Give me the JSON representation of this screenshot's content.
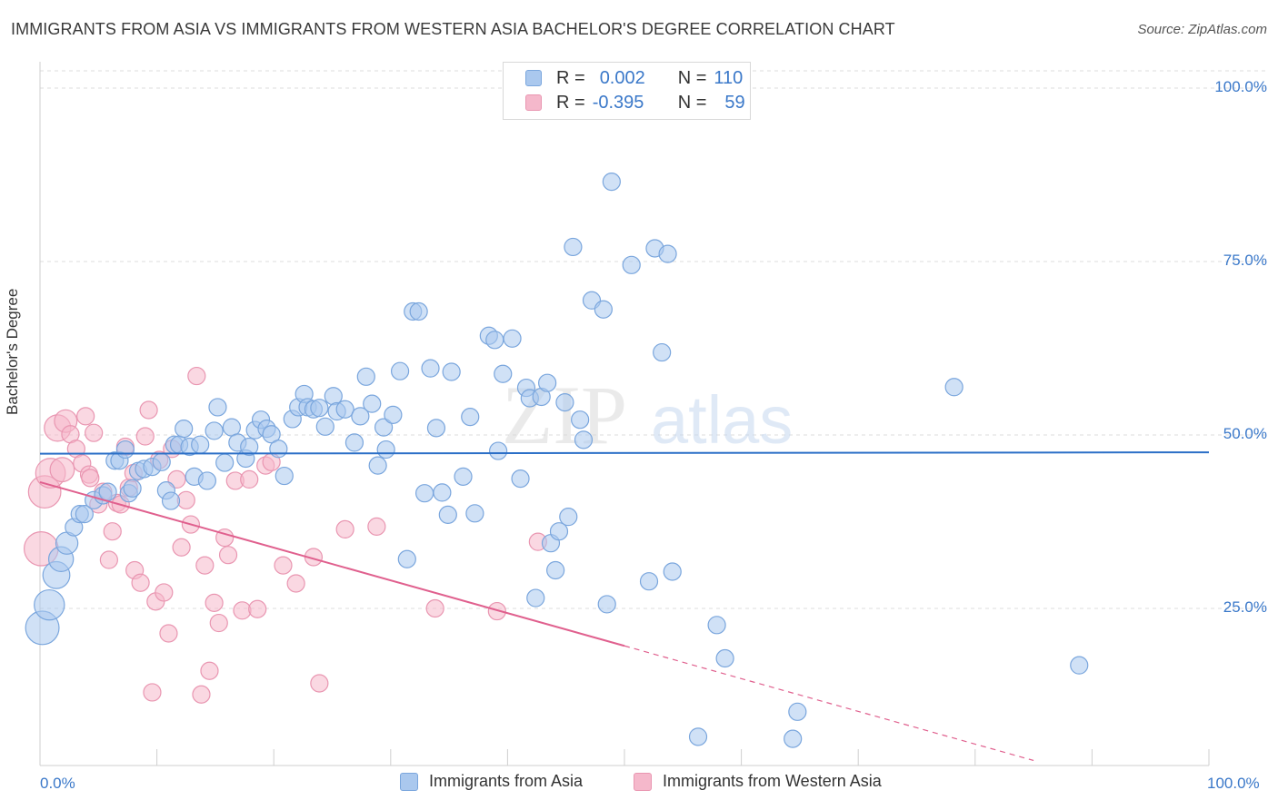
{
  "title": "IMMIGRANTS FROM ASIA VS IMMIGRANTS FROM WESTERN ASIA BACHELOR'S DEGREE CORRELATION CHART",
  "source": "Source: ZipAtlas.com",
  "watermark": {
    "zip": "ZIP",
    "atlas": "atlas"
  },
  "legend": {
    "rows": [
      {
        "r_label": "R =",
        "r_value": "0.002",
        "n_label": "N =",
        "n_value": "110"
      },
      {
        "r_label": "R =",
        "r_value": "-0.395",
        "n_label": "N =",
        "n_value": "59"
      }
    ]
  },
  "bottom_legend": [
    "Immigrants from Asia",
    "Immigrants from Western Asia"
  ],
  "colors": {
    "blue_fill": "#aac8ee",
    "blue_stroke": "#7aa6dd",
    "blue_line": "#2b6fc7",
    "pink_fill": "#f5b8cb",
    "pink_stroke": "#e996b1",
    "pink_line": "#e0608e",
    "accent_text": "#3a78c9",
    "grid": "#dcdcdc"
  },
  "chart_data": {
    "type": "scatter",
    "title": "IMMIGRANTS FROM ASIA VS IMMIGRANTS FROM WESTERN ASIA BACHELOR'S DEGREE CORRELATION CHART",
    "xlabel": "",
    "ylabel": "Bachelor's Degree",
    "xlim": [
      0,
      100
    ],
    "ylim": [
      0,
      105
    ],
    "x_tick_labels": [
      "0.0%",
      "100.0%"
    ],
    "y_ticks": [
      25,
      50,
      75,
      100
    ],
    "y_tick_labels": [
      "25.0%",
      "50.0%",
      "75.0%",
      "100.0%"
    ],
    "grid": true,
    "series": [
      {
        "name": "Immigrants from Asia",
        "color": "#aac8ee",
        "trend": {
          "x0": 0,
          "y0": 47.3,
          "x1": 100,
          "y1": 47.5,
          "dashed_from_x": null
        },
        "points": [
          [
            0.2,
            22.2
          ],
          [
            0.8,
            25.5
          ],
          [
            1.4,
            29.8
          ],
          [
            1.8,
            32.1
          ],
          [
            2.3,
            34.4
          ],
          [
            2.9,
            36.7
          ],
          [
            3.4,
            38.6
          ],
          [
            3.8,
            38.6
          ],
          [
            4.6,
            40.6
          ],
          [
            5.4,
            41.3
          ],
          [
            5.8,
            41.8
          ],
          [
            6.4,
            46.3
          ],
          [
            6.8,
            46.3
          ],
          [
            7.3,
            47.9
          ],
          [
            7.6,
            41.6
          ],
          [
            7.9,
            42.3
          ],
          [
            8.4,
            44.8
          ],
          [
            8.9,
            45.1
          ],
          [
            9.6,
            45.4
          ],
          [
            10.4,
            46.1
          ],
          [
            10.8,
            42.0
          ],
          [
            11.2,
            40.5
          ],
          [
            11.5,
            48.6
          ],
          [
            11.9,
            48.6
          ],
          [
            12.3,
            50.9
          ],
          [
            12.8,
            48.3
          ],
          [
            13.2,
            44.0
          ],
          [
            13.7,
            48.6
          ],
          [
            14.3,
            43.4
          ],
          [
            14.9,
            50.6
          ],
          [
            15.2,
            54.0
          ],
          [
            15.8,
            46.0
          ],
          [
            16.4,
            51.1
          ],
          [
            16.9,
            48.9
          ],
          [
            17.6,
            46.6
          ],
          [
            17.9,
            48.3
          ],
          [
            18.4,
            50.7
          ],
          [
            18.9,
            52.2
          ],
          [
            19.4,
            50.9
          ],
          [
            19.8,
            50.1
          ],
          [
            20.4,
            48.0
          ],
          [
            20.9,
            44.1
          ],
          [
            21.6,
            52.3
          ],
          [
            22.1,
            54.0
          ],
          [
            22.6,
            55.9
          ],
          [
            22.9,
            54.0
          ],
          [
            23.4,
            53.7
          ],
          [
            23.9,
            53.9
          ],
          [
            24.4,
            51.2
          ],
          [
            25.1,
            55.6
          ],
          [
            25.4,
            53.4
          ],
          [
            26.1,
            53.7
          ],
          [
            26.9,
            48.9
          ],
          [
            27.4,
            52.7
          ],
          [
            27.9,
            58.4
          ],
          [
            28.4,
            54.5
          ],
          [
            28.9,
            45.6
          ],
          [
            29.4,
            51.1
          ],
          [
            29.6,
            47.9
          ],
          [
            30.2,
            52.9
          ],
          [
            30.8,
            59.2
          ],
          [
            31.4,
            32.1
          ],
          [
            31.9,
            67.8
          ],
          [
            32.4,
            67.8
          ],
          [
            32.9,
            41.6
          ],
          [
            33.4,
            59.6
          ],
          [
            33.9,
            51.0
          ],
          [
            34.4,
            41.7
          ],
          [
            34.9,
            38.5
          ],
          [
            35.2,
            59.1
          ],
          [
            36.2,
            44.0
          ],
          [
            36.8,
            52.6
          ],
          [
            37.2,
            38.7
          ],
          [
            38.4,
            64.3
          ],
          [
            38.9,
            63.7
          ],
          [
            39.2,
            47.7
          ],
          [
            39.6,
            58.8
          ],
          [
            40.4,
            63.9
          ],
          [
            41.1,
            43.7
          ],
          [
            41.6,
            56.8
          ],
          [
            41.9,
            55.3
          ],
          [
            42.4,
            26.5
          ],
          [
            42.9,
            55.5
          ],
          [
            43.4,
            57.5
          ],
          [
            43.7,
            34.4
          ],
          [
            44.1,
            30.5
          ],
          [
            44.4,
            36.1
          ],
          [
            44.9,
            54.7
          ],
          [
            45.2,
            38.2
          ],
          [
            45.6,
            77.1
          ],
          [
            46.2,
            52.2
          ],
          [
            46.5,
            49.3
          ],
          [
            47.2,
            69.4
          ],
          [
            48.2,
            68.1
          ],
          [
            48.5,
            25.6
          ],
          [
            48.9,
            86.5
          ],
          [
            50.6,
            74.5
          ],
          [
            52.1,
            28.9
          ],
          [
            52.6,
            76.9
          ],
          [
            53.2,
            61.9
          ],
          [
            53.7,
            76.1
          ],
          [
            54.1,
            30.3
          ],
          [
            56.3,
            6.5
          ],
          [
            57.9,
            22.6
          ],
          [
            58.6,
            17.8
          ],
          [
            64.4,
            6.2
          ],
          [
            64.8,
            10.1
          ],
          [
            78.2,
            56.9
          ],
          [
            88.9,
            16.8
          ]
        ]
      },
      {
        "name": "Immigrants from Western Asia",
        "color": "#f5b8cb",
        "trend": {
          "x0": 0,
          "y0": 43.2,
          "x1": 100,
          "y1": -4.0,
          "dashed_from_x": 50.0
        },
        "points": [
          [
            0.1,
            33.6
          ],
          [
            0.4,
            41.8
          ],
          [
            0.9,
            44.5
          ],
          [
            1.5,
            51.0
          ],
          [
            1.9,
            45.0
          ],
          [
            2.2,
            52.0
          ],
          [
            2.6,
            50.1
          ],
          [
            3.1,
            48.0
          ],
          [
            3.6,
            45.9
          ],
          [
            3.9,
            52.7
          ],
          [
            4.2,
            44.3
          ],
          [
            4.6,
            50.3
          ],
          [
            5.0,
            40.0
          ],
          [
            5.4,
            41.8
          ],
          [
            5.9,
            32.0
          ],
          [
            6.2,
            36.1
          ],
          [
            6.6,
            40.2
          ],
          [
            6.9,
            40.0
          ],
          [
            7.3,
            48.3
          ],
          [
            7.6,
            42.4
          ],
          [
            8.1,
            30.5
          ],
          [
            8.6,
            28.7
          ],
          [
            9.0,
            49.8
          ],
          [
            9.3,
            53.6
          ],
          [
            9.6,
            12.9
          ],
          [
            9.9,
            26.0
          ],
          [
            10.2,
            46.4
          ],
          [
            10.6,
            27.3
          ],
          [
            11.0,
            21.4
          ],
          [
            11.3,
            48.0
          ],
          [
            11.7,
            43.6
          ],
          [
            12.1,
            33.8
          ],
          [
            12.5,
            40.6
          ],
          [
            12.9,
            37.1
          ],
          [
            13.4,
            58.5
          ],
          [
            13.8,
            12.6
          ],
          [
            14.1,
            31.2
          ],
          [
            14.5,
            16.0
          ],
          [
            14.9,
            25.8
          ],
          [
            15.3,
            22.9
          ],
          [
            15.8,
            35.2
          ],
          [
            16.1,
            32.7
          ],
          [
            16.7,
            43.4
          ],
          [
            17.3,
            24.7
          ],
          [
            17.9,
            43.6
          ],
          [
            18.6,
            24.9
          ],
          [
            19.3,
            45.6
          ],
          [
            19.8,
            46.1
          ],
          [
            20.8,
            31.2
          ],
          [
            21.9,
            28.6
          ],
          [
            23.4,
            32.4
          ],
          [
            23.9,
            14.2
          ],
          [
            26.1,
            36.4
          ],
          [
            28.8,
            36.8
          ],
          [
            33.8,
            25.0
          ],
          [
            39.1,
            24.6
          ],
          [
            42.6,
            34.6
          ],
          [
            8.0,
            44.5
          ],
          [
            4.3,
            43.8
          ]
        ]
      }
    ]
  }
}
